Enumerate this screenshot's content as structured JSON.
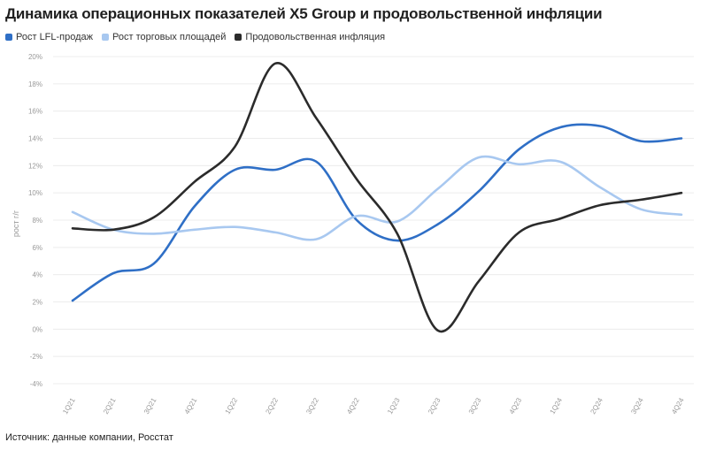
{
  "title": "Динамика операционных показателей X5 Group и продовольственной инфляции",
  "source": "Источник: данные компании, Росстат",
  "chart_data": {
    "type": "line",
    "ylabel": "рост г/г",
    "xlabel": "",
    "ylim": [
      -4,
      20
    ],
    "yticks": [
      -4,
      -2,
      0,
      2,
      4,
      6,
      8,
      10,
      12,
      14,
      16,
      18,
      20
    ],
    "ytick_labels": [
      "-4%",
      "-2%",
      "0%",
      "2%",
      "4%",
      "6%",
      "8%",
      "10%",
      "12%",
      "14%",
      "16%",
      "18%",
      "20%"
    ],
    "categories": [
      "1Q21",
      "2Q21",
      "3Q21",
      "4Q21",
      "1Q22",
      "2Q22",
      "3Q22",
      "4Q22",
      "1Q23",
      "2Q23",
      "3Q23",
      "4Q23",
      "1Q24",
      "2Q24",
      "3Q24",
      "4Q24"
    ],
    "grid": "horizontal",
    "legend_position": "top-left",
    "series": [
      {
        "name": "Рост LFL-продаж",
        "color": "#2f6fc6",
        "values": [
          2.1,
          4.1,
          4.8,
          9.0,
          11.7,
          11.7,
          12.3,
          8.0,
          6.5,
          7.7,
          10.1,
          13.2,
          14.8,
          14.9,
          13.8,
          14.0
        ]
      },
      {
        "name": "Рост торговых площадей",
        "color": "#a8c8f0",
        "values": [
          8.6,
          7.3,
          7.0,
          7.3,
          7.5,
          7.1,
          6.6,
          8.3,
          7.9,
          10.3,
          12.6,
          12.1,
          12.3,
          10.4,
          8.8,
          8.4
        ]
      },
      {
        "name": "Продовольственная инфляция",
        "color": "#2b2b2b",
        "values": [
          7.4,
          7.3,
          8.2,
          10.8,
          13.4,
          19.5,
          15.5,
          11.0,
          7.0,
          -0.1,
          3.5,
          7.1,
          8.1,
          9.1,
          9.5,
          10.0
        ]
      }
    ]
  }
}
